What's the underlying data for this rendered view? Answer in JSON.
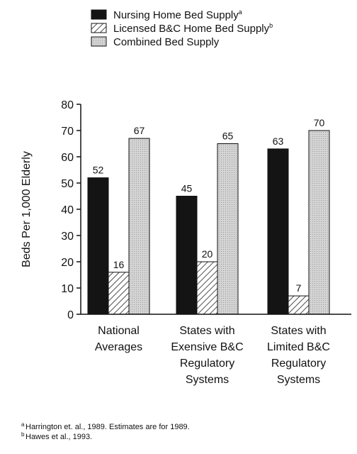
{
  "chart_data": {
    "type": "bar",
    "title": "",
    "xlabel": "",
    "ylabel": "Beds Per 1,000 Elderly",
    "ylim": [
      0,
      80
    ],
    "yticks": [
      0,
      10,
      20,
      30,
      40,
      50,
      60,
      70,
      80
    ],
    "categories": [
      [
        "National",
        "Averages"
      ],
      [
        "States with",
        "Exensive B&C",
        "Regulatory",
        "Systems"
      ],
      [
        "States with",
        "Limited B&C",
        "Regulatory",
        "Systems"
      ]
    ],
    "series": [
      {
        "name": "Nursing Home Bed Supply",
        "sup": "a",
        "fill": "solid",
        "values": [
          52,
          45,
          63
        ]
      },
      {
        "name": "Licensed B&C Home Bed Supply",
        "sup": "b",
        "fill": "hatch",
        "values": [
          16,
          20,
          7
        ]
      },
      {
        "name": "Combined Bed Supply",
        "sup": "",
        "fill": "dots",
        "values": [
          67,
          65,
          70
        ]
      }
    ],
    "legend_position": "top",
    "grid": false,
    "colors": {
      "solid": "#141414",
      "hatch_bg": "#ffffff",
      "dots_bg": "#d4d4d4",
      "stroke": "#111111"
    }
  },
  "footnotes": [
    {
      "marker": "a",
      "text": "Harrington et. al., 1989.  Estimates are for 1989."
    },
    {
      "marker": "b",
      "text": "Hawes et al., 1993."
    }
  ]
}
